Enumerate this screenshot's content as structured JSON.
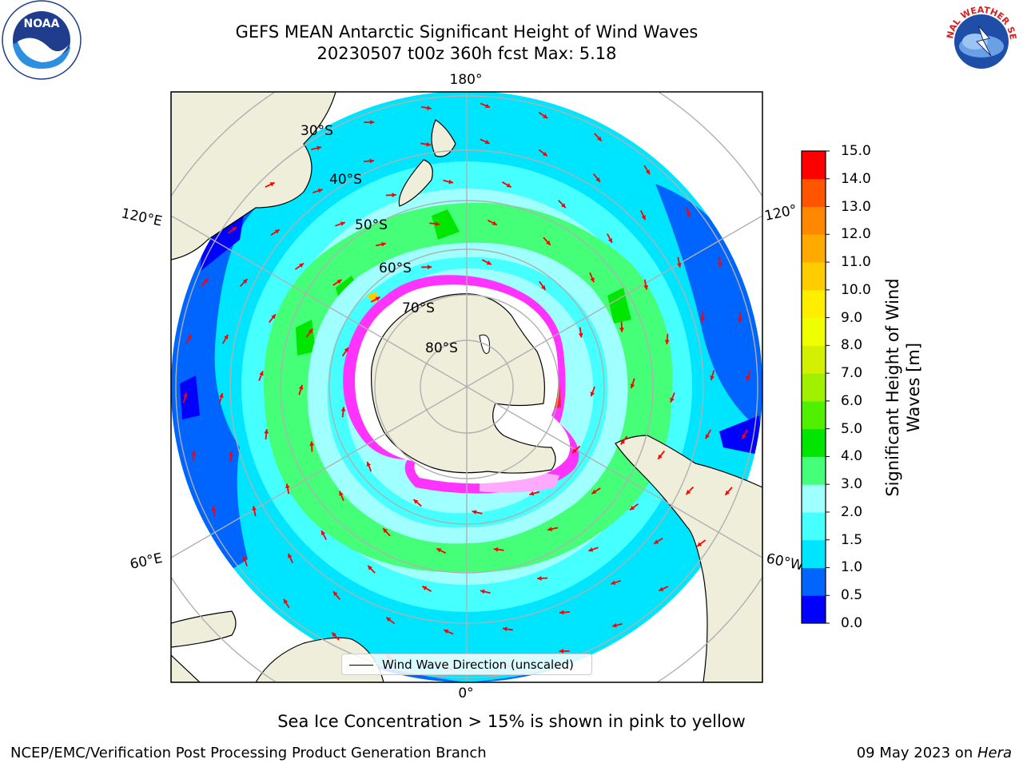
{
  "title": {
    "line1": "GEFS MEAN Antarctic Significant Height of Wind Waves",
    "line2": "20230507 t00z 360h fcst   Max: 5.18"
  },
  "logos": {
    "left": "noaa-logo",
    "left_text": "NOAA",
    "right": "national-weather-service-logo",
    "right_text": "NATIONAL WEATHER SERVICE"
  },
  "map": {
    "projection": "south-polar-stereographic",
    "longitude_labels": [
      "180°",
      "120°E",
      "120°",
      "60°E",
      "60°W",
      "0°"
    ],
    "latitude_labels": [
      "30°S",
      "40°S",
      "50°S",
      "60°S",
      "70°S",
      "80°S"
    ],
    "land_color": "#efeedb",
    "ice_color_low": "#ff33ff",
    "ice_color_high": "#ffff00",
    "arrow_color": "#ff0000",
    "grid_color": "#b0b0b0"
  },
  "legend": {
    "label": "Wind Wave Direction (unscaled)"
  },
  "colorbar": {
    "title_line1": "Significant Height of Wind",
    "title_line2": "Waves [m]",
    "ticks": [
      "15.0",
      "14.0",
      "13.0",
      "12.0",
      "11.0",
      "10.0",
      "9.0",
      "8.0",
      "7.0",
      "6.0",
      "5.0",
      "4.0",
      "3.0",
      "2.0",
      "1.5",
      "1.0",
      "0.5",
      "0.0"
    ],
    "colors": [
      "#0000ff",
      "#0064ff",
      "#00e5ff",
      "#46ffff",
      "#a0ffff",
      "#46ff78",
      "#00e600",
      "#50f000",
      "#a0f000",
      "#d2f000",
      "#f0ff00",
      "#ffee00",
      "#ffcc00",
      "#ffaa00",
      "#ff8800",
      "#ff5500",
      "#ff0000"
    ]
  },
  "caption": "Sea Ice Concentration > 15% is shown in pink to yellow",
  "footer": {
    "left": "NCEP/EMC/Verification Post Processing Product Generation Branch",
    "right_date": "09 May 2023 on ",
    "right_host": "Hera"
  }
}
